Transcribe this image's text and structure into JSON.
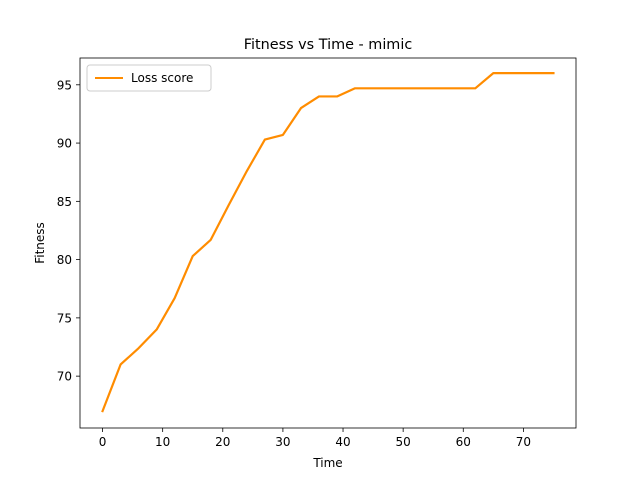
{
  "chart_data": {
    "type": "line",
    "title": "Fitness vs Time - mimic",
    "xlabel": "Time",
    "ylabel": "Fitness",
    "xlim": [
      -3.75,
      78.75
    ],
    "ylim": [
      65.55,
      97.3
    ],
    "xticks": [
      0,
      10,
      20,
      30,
      40,
      50,
      60,
      70
    ],
    "yticks": [
      70,
      75,
      80,
      85,
      90,
      95
    ],
    "grid": false,
    "legend_position": "upper-left",
    "series": [
      {
        "name": "Loss score",
        "color": "#ff8c00",
        "x": [
          0,
          3,
          6,
          9,
          12,
          15,
          18,
          21,
          24,
          27,
          30,
          33,
          36,
          39,
          42,
          45,
          48,
          51,
          54,
          57,
          60,
          62,
          65,
          68,
          71,
          75
        ],
        "y": [
          67.0,
          71.0,
          72.4,
          74.0,
          76.7,
          80.3,
          81.7,
          84.7,
          87.6,
          90.3,
          90.7,
          93.0,
          94.0,
          94.0,
          94.7,
          94.7,
          94.7,
          94.7,
          94.7,
          94.7,
          94.7,
          94.7,
          96.0,
          96.0,
          96.0,
          96.0
        ]
      }
    ]
  }
}
